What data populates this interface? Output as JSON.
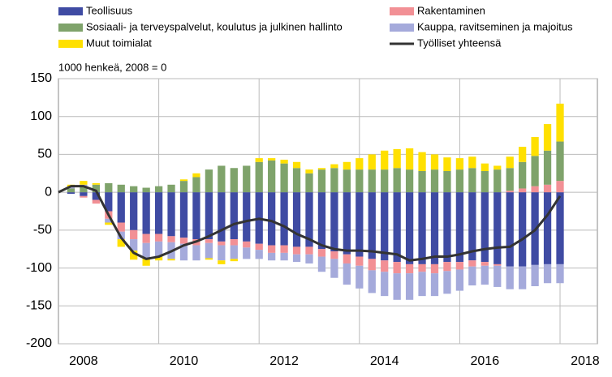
{
  "chart_data": {
    "type": "bar",
    "subtitle": "1000 henkeä, 2008 = 0",
    "stacked": true,
    "categories": [
      "2008",
      null,
      null,
      null,
      null,
      null,
      null,
      null,
      "2010",
      null,
      null,
      null,
      null,
      null,
      null,
      null,
      "2012",
      null,
      null,
      null,
      null,
      null,
      null,
      null,
      "2014",
      null,
      null,
      null,
      null,
      null,
      null,
      null,
      "2016",
      null,
      null,
      null,
      null,
      null,
      null,
      null,
      "2018"
    ],
    "series": [
      {
        "name": "Teollisuus",
        "color": "#3f4ba3",
        "values": [
          0,
          -2,
          -5,
          -10,
          -25,
          -40,
          -50,
          -55,
          -55,
          -58,
          -60,
          -62,
          -62,
          -65,
          -62,
          -65,
          -68,
          -70,
          -70,
          -72,
          -72,
          -75,
          -78,
          -82,
          -85,
          -88,
          -90,
          -92,
          -95,
          -95,
          -95,
          -92,
          -92,
          -90,
          -92,
          -95,
          -98,
          -98,
          -96,
          -95,
          -95
        ]
      },
      {
        "name": "Rakentaminen",
        "color": "#f29095",
        "values": [
          0,
          0,
          -2,
          -5,
          -10,
          -12,
          -12,
          -12,
          -10,
          -8,
          -8,
          -8,
          -5,
          -5,
          -8,
          -8,
          -8,
          -10,
          -10,
          -10,
          -10,
          -10,
          -10,
          -12,
          -12,
          -15,
          -15,
          -15,
          -12,
          -10,
          -12,
          -12,
          -10,
          -8,
          -5,
          -2,
          2,
          5,
          8,
          10,
          15
        ]
      },
      {
        "name": "Sosiaali- ja terveyspalvelut, koulutus ja julkinen hallinto",
        "color": "#7fa36b",
        "values": [
          0,
          5,
          8,
          10,
          12,
          10,
          8,
          6,
          8,
          10,
          15,
          20,
          30,
          35,
          32,
          35,
          40,
          42,
          38,
          32,
          25,
          30,
          32,
          30,
          30,
          30,
          30,
          32,
          30,
          28,
          30,
          28,
          30,
          32,
          28,
          30,
          30,
          35,
          40,
          45,
          52
        ]
      },
      {
        "name": "Kauppa, ravitseminen ja majoitus",
        "color": "#a5aadb",
        "values": [
          0,
          2,
          2,
          0,
          -5,
          -10,
          -15,
          -20,
          -20,
          -22,
          -22,
          -20,
          -20,
          -20,
          -18,
          -15,
          -12,
          -10,
          -10,
          -10,
          -12,
          -20,
          -25,
          -28,
          -30,
          -30,
          -32,
          -35,
          -35,
          -32,
          -30,
          -30,
          -28,
          -25,
          -25,
          -28,
          -30,
          -30,
          -28,
          -25,
          -25
        ]
      },
      {
        "name": "Muut toimialat",
        "color": "#ffe000",
        "values": [
          0,
          3,
          5,
          2,
          -3,
          -10,
          -12,
          -10,
          -5,
          -2,
          2,
          5,
          -2,
          -5,
          -3,
          0,
          5,
          3,
          5,
          8,
          5,
          2,
          5,
          10,
          15,
          20,
          25,
          25,
          28,
          25,
          20,
          18,
          15,
          15,
          10,
          5,
          15,
          20,
          25,
          35,
          50
        ]
      },
      {
        "name": "Työlliset yhteensä",
        "color": "#333333",
        "type": "line",
        "values": [
          0,
          8,
          8,
          2,
          -30,
          -60,
          -80,
          -88,
          -85,
          -78,
          -70,
          -65,
          -58,
          -50,
          -42,
          -38,
          -35,
          -38,
          -45,
          -55,
          -62,
          -70,
          -75,
          -77,
          -77,
          -78,
          -80,
          -82,
          -90,
          -88,
          -85,
          -85,
          -82,
          -78,
          -75,
          -73,
          -72,
          -62,
          -50,
          -30,
          -5
        ]
      }
    ],
    "ylim": [
      -200,
      150
    ],
    "yticks": [
      -200,
      -150,
      -100,
      -50,
      0,
      50,
      100,
      150
    ],
    "grid": true,
    "legend": "top"
  }
}
